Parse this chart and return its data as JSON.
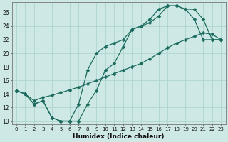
{
  "xlabel": "Humidex (Indice chaleur)",
  "bg_color": "#cde8e5",
  "line_color": "#1a6b5e",
  "grid_color": "#aed4d0",
  "xlim": [
    -0.5,
    23.5
  ],
  "ylim": [
    9.5,
    27.5
  ],
  "xticks": [
    0,
    1,
    2,
    3,
    4,
    5,
    6,
    7,
    8,
    9,
    10,
    11,
    12,
    13,
    14,
    15,
    16,
    17,
    18,
    19,
    20,
    21,
    22,
    23
  ],
  "yticks": [
    10,
    12,
    14,
    16,
    18,
    20,
    22,
    24,
    26
  ],
  "line_straight_x": [
    0,
    1,
    2,
    3,
    4,
    5,
    6,
    7,
    8,
    9,
    10,
    11,
    12,
    13,
    14,
    15,
    16,
    17,
    18,
    19,
    20,
    21,
    22,
    23
  ],
  "line_straight_y": [
    14.5,
    14.0,
    13.0,
    13.5,
    13.8,
    14.2,
    14.6,
    15.0,
    15.5,
    16.0,
    16.5,
    17.0,
    17.5,
    18.0,
    18.5,
    19.2,
    20.0,
    20.8,
    21.5,
    22.0,
    22.5,
    23.0,
    22.8,
    22.0
  ],
  "line_dip_x": [
    0,
    1,
    2,
    3,
    4,
    5,
    6,
    7,
    8,
    9,
    10,
    11,
    12,
    13,
    14,
    15,
    16,
    17,
    18,
    19,
    20,
    21,
    22,
    23
  ],
  "line_dip_y": [
    14.5,
    14.0,
    12.5,
    13.0,
    10.5,
    10.0,
    10.0,
    10.0,
    12.5,
    14.5,
    17.5,
    18.5,
    21.0,
    23.5,
    24.0,
    24.5,
    25.5,
    27.0,
    27.0,
    26.5,
    25.0,
    22.0,
    22.0,
    22.0
  ],
  "line_upper_x": [
    0,
    1,
    2,
    3,
    4,
    5,
    6,
    7,
    8,
    9,
    10,
    11,
    12,
    13,
    14,
    15,
    16,
    17,
    18,
    19,
    20,
    21,
    22,
    23
  ],
  "line_upper_y": [
    14.5,
    14.0,
    12.5,
    13.0,
    10.5,
    10.0,
    10.0,
    12.5,
    17.5,
    20.0,
    21.0,
    21.5,
    22.0,
    23.5,
    24.0,
    25.0,
    26.5,
    27.0,
    27.0,
    26.5,
    26.5,
    25.0,
    22.0,
    22.0
  ]
}
